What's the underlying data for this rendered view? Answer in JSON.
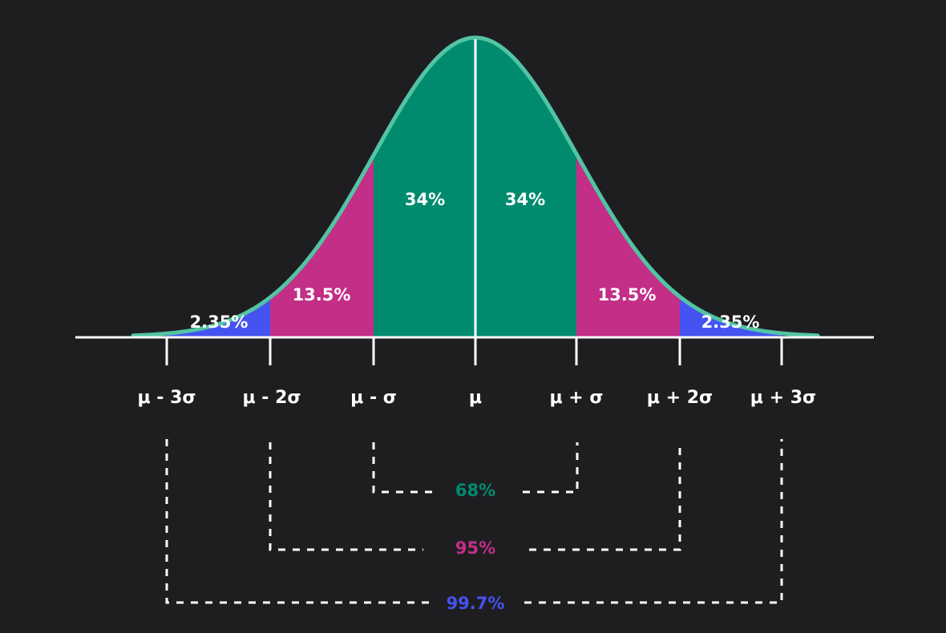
{
  "colors": {
    "background": "#1e1e21",
    "center": "#008b6f",
    "middle": "#c32e87",
    "outer": "#4553f2",
    "curve": "#52c4a4",
    "axis": "#ffffff"
  },
  "segments": [
    {
      "id": "left-outer",
      "label": "2.35%",
      "color": "#4553f2"
    },
    {
      "id": "left-middle",
      "label": "13.5%",
      "color": "#c32e87"
    },
    {
      "id": "left-center",
      "label": "34%",
      "color": "#008b6f"
    },
    {
      "id": "right-center",
      "label": "34%",
      "color": "#008b6f"
    },
    {
      "id": "right-middle",
      "label": "13.5%",
      "color": "#c32e87"
    },
    {
      "id": "right-outer",
      "label": "2.35%",
      "color": "#4553f2"
    }
  ],
  "ticks": [
    "μ - 3σ",
    "μ - 2σ",
    "μ - σ",
    "μ",
    "μ + σ",
    "μ + 2σ",
    "μ + 3σ"
  ],
  "ranges": [
    {
      "label": "68%",
      "color": "#008b6f"
    },
    {
      "label": "95%",
      "color": "#c32e87"
    },
    {
      "label": "99.7%",
      "color": "#4553f2"
    }
  ]
}
